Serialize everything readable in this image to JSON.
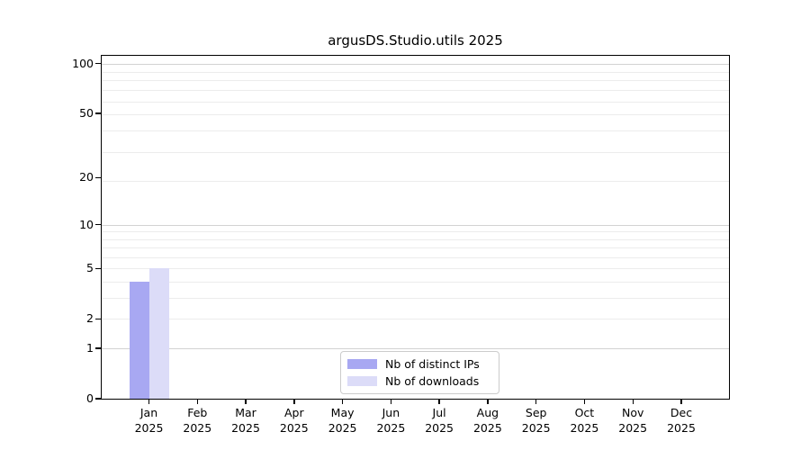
{
  "title": "argusDS.Studio.utils 2025",
  "chart_data": {
    "type": "bar",
    "title": "argusDS.Studio.utils 2025",
    "categories": [
      "Jan 2025",
      "Feb 2025",
      "Mar 2025",
      "Apr 2025",
      "May 2025",
      "Jun 2025",
      "Jul 2025",
      "Aug 2025",
      "Sep 2025",
      "Oct 2025",
      "Nov 2025",
      "Dec 2025"
    ],
    "series": [
      {
        "name": "Nb of distinct IPs",
        "color": "#a8a8f2",
        "values": [
          4,
          0,
          0,
          0,
          0,
          0,
          0,
          0,
          0,
          0,
          0,
          0
        ]
      },
      {
        "name": "Nb of downloads",
        "color": "#dcdcf8",
        "values": [
          5,
          0,
          0,
          0,
          0,
          0,
          0,
          0,
          0,
          0,
          0,
          0
        ]
      }
    ],
    "xlabel": "",
    "ylabel": "",
    "yscale": "log10(1+y)",
    "y_ticks": [
      0,
      1,
      2,
      5,
      10,
      20,
      50,
      100
    ],
    "ylim": [
      0,
      111
    ],
    "grid": "horizontal",
    "gridlines": {
      "major": [
        1,
        10,
        100
      ],
      "minor": [
        2,
        3,
        4,
        5,
        6,
        7,
        8,
        9,
        19,
        29,
        39,
        49,
        59,
        69,
        79,
        89,
        99
      ]
    },
    "legend_position": "lower center"
  },
  "legend": {
    "items": [
      {
        "label": "Nb of distinct IPs",
        "color": "#a8a8f2"
      },
      {
        "label": "Nb of downloads",
        "color": "#dcdcf8"
      }
    ]
  },
  "colors": {
    "background": "#ffffff",
    "axis": "#000000",
    "grid_major": "#d2d2d2",
    "grid_minor": "#ececec",
    "legend_border": "#cccccc",
    "text": "#000000"
  }
}
